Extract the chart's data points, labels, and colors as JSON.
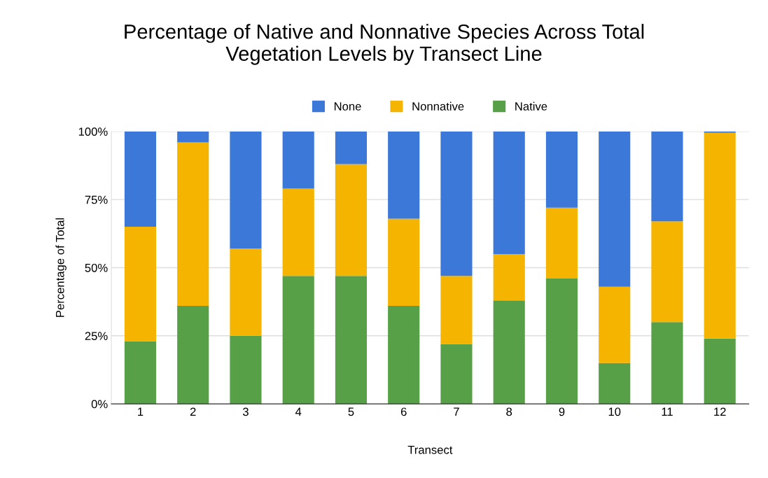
{
  "chart_data": {
    "type": "bar",
    "stacked": true,
    "title": "Percentage of Native and Nonnative Species Across Total\nVegetation Levels by Transect Line",
    "xlabel": "Transect",
    "ylabel": "Percentage of Total",
    "categories": [
      "1",
      "2",
      "3",
      "4",
      "5",
      "6",
      "7",
      "8",
      "9",
      "10",
      "11",
      "12"
    ],
    "series": [
      {
        "name": "Native",
        "color": "#57a047",
        "values": [
          23,
          36,
          25,
          47,
          47,
          36,
          22,
          38,
          46,
          15,
          30,
          24
        ]
      },
      {
        "name": "Nonnative",
        "color": "#f4b400",
        "values": [
          42,
          60,
          32,
          32,
          41,
          32,
          25,
          17,
          26,
          28,
          37,
          75.5
        ]
      },
      {
        "name": "None",
        "color": "#3c78d8",
        "values": [
          35,
          4,
          43,
          21,
          12,
          32,
          53,
          45,
          28,
          57,
          33,
          0.5
        ]
      }
    ],
    "ylim": [
      0,
      100
    ],
    "yticks": [
      {
        "value": 0,
        "label": "0%"
      },
      {
        "value": 25,
        "label": "25%"
      },
      {
        "value": 50,
        "label": "50%"
      },
      {
        "value": 75,
        "label": "75%"
      },
      {
        "value": 100,
        "label": "100%"
      }
    ],
    "grid": "y",
    "legend": "top"
  }
}
